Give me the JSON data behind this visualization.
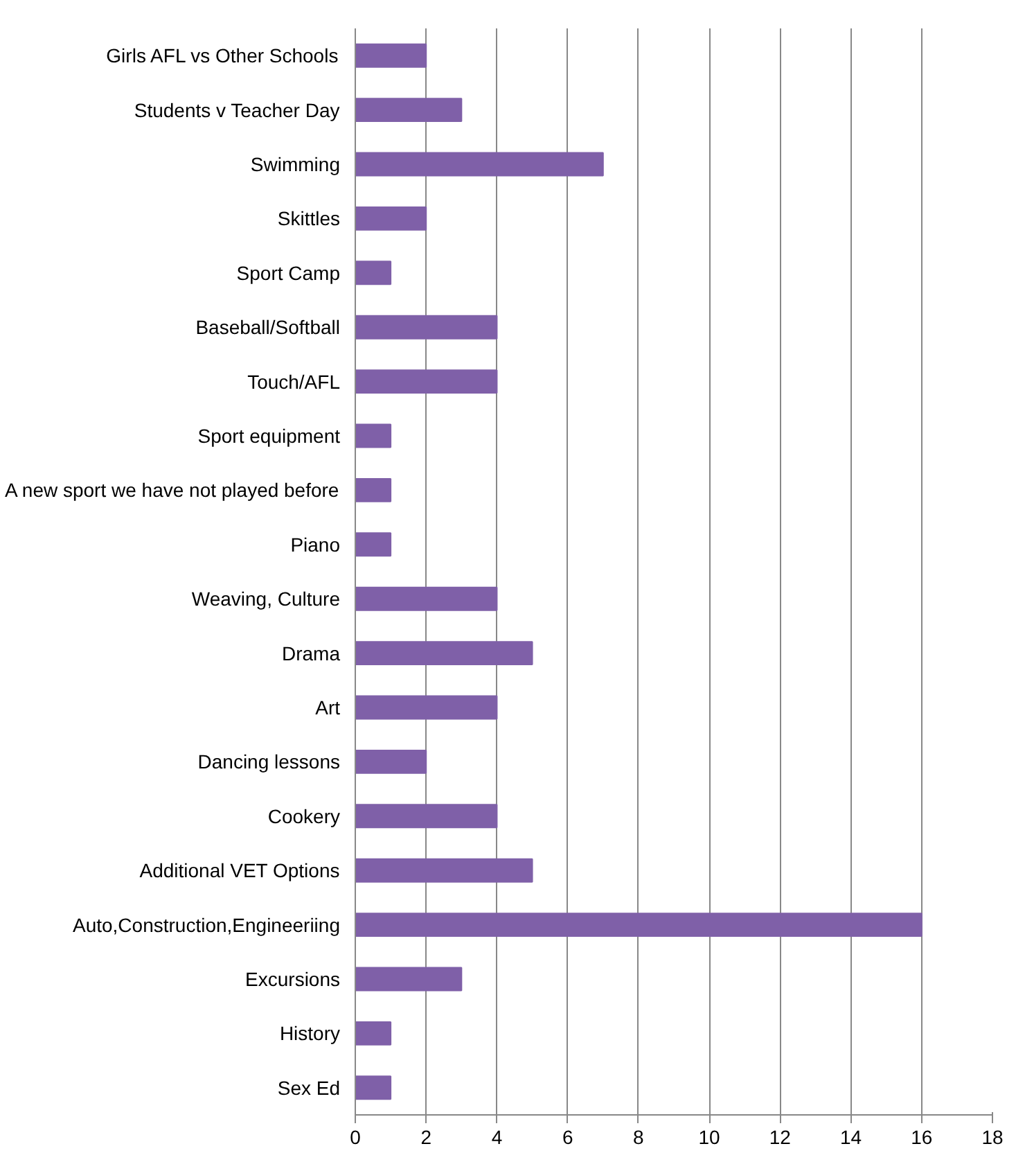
{
  "chart_data": {
    "type": "bar",
    "orientation": "horizontal",
    "categories": [
      "Girls AFL vs Other Schools",
      "Students v Teacher Day",
      "Swimming",
      "Skittles",
      "Sport Camp",
      "Baseball/Softball",
      "Touch/AFL",
      "Sport equipment",
      "A new sport we have not played before",
      "Piano",
      "Weaving, Culture",
      "Drama",
      "Art",
      "Dancing lessons",
      "Cookery",
      "Additional VET Options",
      "Auto,Construction,Engineeriing",
      "Excursions",
      "History",
      "Sex Ed"
    ],
    "values": [
      2,
      3,
      7,
      2,
      1,
      4,
      4,
      1,
      1,
      1,
      4,
      5,
      4,
      2,
      4,
      5,
      16,
      3,
      1,
      1
    ],
    "color": "#7f60a8",
    "xlim": [
      0,
      18
    ],
    "xticks": [
      0,
      2,
      4,
      6,
      8,
      10,
      12,
      14,
      16,
      18
    ],
    "grid": "x"
  }
}
